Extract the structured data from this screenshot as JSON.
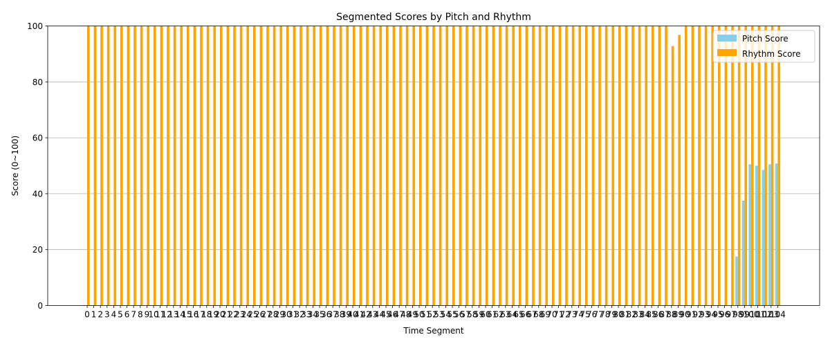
{
  "chart_data": {
    "type": "bar",
    "title": "Segmented Scores by Pitch and Rhythm",
    "xlabel": "Time Segment",
    "ylabel": "Score (0~100)",
    "ylim": [
      0,
      100
    ],
    "yticks": [
      0,
      20,
      40,
      60,
      80,
      100
    ],
    "grid": "y",
    "legend_position": "top-right",
    "categories": [
      "0",
      "1",
      "2",
      "3",
      "4",
      "5",
      "6",
      "7",
      "8",
      "9",
      "10",
      "11",
      "12",
      "13",
      "14",
      "15",
      "16",
      "17",
      "18",
      "19",
      "20",
      "21",
      "22",
      "23",
      "24",
      "25",
      "26",
      "27",
      "28",
      "29",
      "30",
      "31",
      "32",
      "33",
      "34",
      "35",
      "36",
      "37",
      "38",
      "39",
      "40",
      "41",
      "42",
      "43",
      "44",
      "45",
      "46",
      "47",
      "48",
      "49",
      "50",
      "51",
      "52",
      "53",
      "54",
      "55",
      "56",
      "57",
      "58",
      "59",
      "60",
      "61",
      "62",
      "63",
      "64",
      "65",
      "66",
      "67",
      "68",
      "69",
      "70",
      "71",
      "72",
      "73",
      "74",
      "75",
      "76",
      "77",
      "78",
      "79",
      "80",
      "81",
      "82",
      "83",
      "84",
      "85",
      "86",
      "87",
      "88",
      "89",
      "90",
      "91",
      "92",
      "93",
      "94",
      "95",
      "96",
      "97",
      "98",
      "99",
      "100",
      "101",
      "102",
      "103",
      "104"
    ],
    "series": [
      {
        "name": "Pitch Score",
        "color": "#87ceeb",
        "values": [
          0,
          0,
          0,
          0,
          0,
          0,
          0,
          0,
          0,
          0,
          0,
          0,
          0,
          0,
          0,
          0,
          0,
          0,
          0,
          0,
          0,
          0,
          0,
          0,
          0,
          0,
          0,
          0,
          0,
          0,
          0,
          0,
          0,
          0,
          0,
          0,
          0,
          0,
          0,
          0,
          0,
          0,
          0,
          0,
          0,
          0,
          0,
          0,
          0,
          0,
          0,
          0,
          0,
          0,
          0,
          0,
          0,
          0,
          0,
          0,
          0,
          0,
          0,
          0,
          0,
          0,
          0,
          0,
          0,
          0,
          0,
          0,
          0,
          0,
          0,
          0,
          0,
          0,
          0,
          0,
          0,
          0,
          0,
          0,
          0,
          0,
          0,
          0,
          0,
          0,
          0,
          0,
          0,
          0,
          0,
          0,
          0,
          0,
          17.5,
          37.5,
          50.5,
          50,
          48.5,
          50.5,
          50.8
        ]
      },
      {
        "name": "Rhythm Score",
        "color": "#ffa500",
        "values": [
          100,
          100,
          100,
          100,
          100,
          100,
          100,
          100,
          100,
          100,
          100,
          100,
          100,
          100,
          100,
          100,
          100,
          100,
          100,
          100,
          100,
          100,
          100,
          100,
          100,
          100,
          100,
          100,
          100,
          100,
          100,
          100,
          100,
          100,
          100,
          100,
          100,
          100,
          100,
          100,
          100,
          100,
          100,
          100,
          100,
          100,
          100,
          100,
          100,
          100,
          100,
          100,
          100,
          100,
          100,
          100,
          100,
          100,
          100,
          100,
          100,
          100,
          100,
          100,
          100,
          100,
          100,
          100,
          100,
          100,
          100,
          100,
          100,
          100,
          100,
          100,
          100,
          100,
          100,
          100,
          100,
          100,
          100,
          100,
          100,
          100,
          100,
          100,
          92.8,
          96.8,
          100,
          100,
          100,
          100,
          100,
          100,
          100,
          100,
          100,
          100,
          100,
          100,
          100,
          100,
          100
        ]
      }
    ]
  }
}
